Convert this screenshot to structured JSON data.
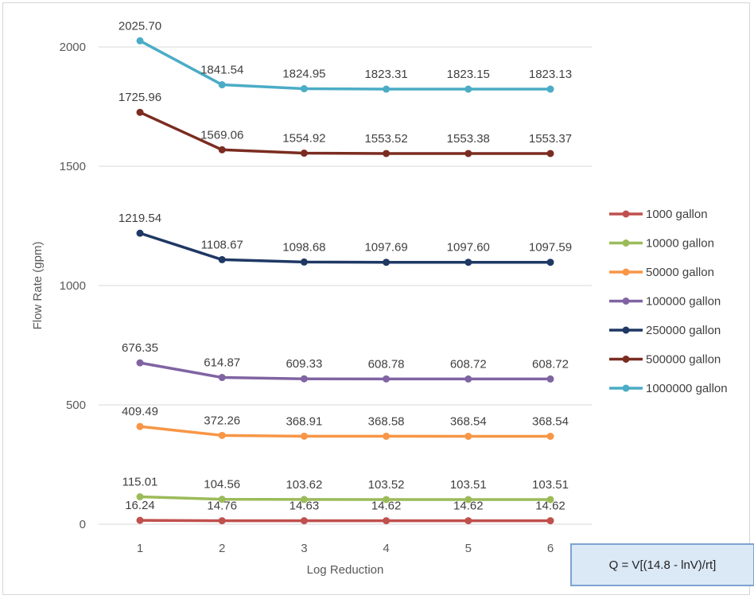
{
  "chart_data": {
    "type": "line",
    "x": [
      1,
      2,
      3,
      4,
      5,
      6
    ],
    "xlabel": "Log Reduction",
    "ylabel": "Flow Rate (gpm)",
    "ylim": [
      0,
      2000
    ],
    "yticks": [
      0,
      500,
      1000,
      1500,
      2000
    ],
    "grid": "horizontal",
    "legend_position": "right",
    "series": [
      {
        "name": "1000 gallon",
        "color": "#c0504d",
        "values": [
          16.24,
          14.76,
          14.63,
          14.62,
          14.62,
          14.62
        ],
        "labels": [
          "16.24",
          "14.76",
          "14.63",
          "14.62",
          "14.62",
          "14.62"
        ]
      },
      {
        "name": "10000 gallon",
        "color": "#9bbb59",
        "values": [
          115.01,
          104.56,
          103.62,
          103.52,
          103.51,
          103.51
        ],
        "labels": [
          "115.01",
          "104.56",
          "103.62",
          "103.52",
          "103.51",
          "103.51"
        ]
      },
      {
        "name": "50000 gallon",
        "color": "#f79646",
        "values": [
          409.49,
          372.26,
          368.91,
          368.58,
          368.54,
          368.54
        ],
        "labels": [
          "409.49",
          "372.26",
          "368.91",
          "368.58",
          "368.54",
          "368.54"
        ]
      },
      {
        "name": "100000 gallon",
        "color": "#8064a2",
        "values": [
          676.35,
          614.87,
          609.33,
          608.78,
          608.72,
          608.72
        ],
        "labels": [
          "676.35",
          "614.87",
          "609.33",
          "608.78",
          "608.72",
          "608.72"
        ]
      },
      {
        "name": "250000 gallon",
        "color": "#1f3864",
        "values": [
          1219.54,
          1108.67,
          1098.68,
          1097.69,
          1097.6,
          1097.59
        ],
        "labels": [
          "1219.54",
          "1108.67",
          "1098.68",
          "1097.69",
          "1097.60",
          "1097.59"
        ]
      },
      {
        "name": "500000 gallon",
        "color": "#7b2c20",
        "values": [
          1725.96,
          1569.06,
          1554.92,
          1553.52,
          1553.38,
          1553.37
        ],
        "labels": [
          "1725.96",
          "1569.06",
          "1554.92",
          "1553.52",
          "1553.38",
          "1553.37"
        ]
      },
      {
        "name": "1000000 gallon",
        "color": "#4bacc6",
        "values": [
          2025.7,
          1841.54,
          1824.95,
          1823.31,
          1823.15,
          1823.13
        ],
        "labels": [
          "2025.70",
          "1841.54",
          "1824.95",
          "1823.31",
          "1823.15",
          "1823.13"
        ]
      }
    ]
  },
  "formula": {
    "text": "Q = V[(14.8 - lnV)/rt]"
  }
}
